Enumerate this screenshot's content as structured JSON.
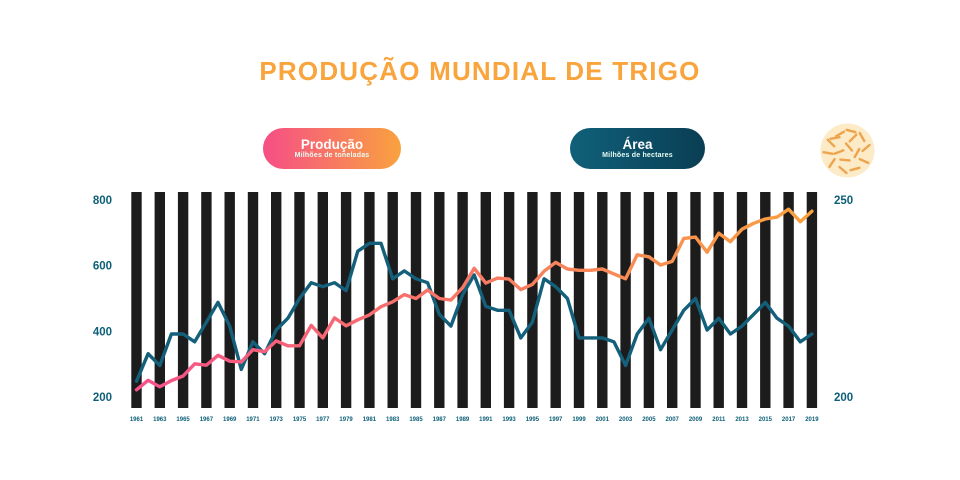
{
  "title": "PRODUÇÃO MUNDIAL DE TRIGO",
  "legend": {
    "producao": {
      "label": "Produção",
      "sublabel": "Milhões de toneladas"
    },
    "area": {
      "label": "Área",
      "sublabel": "Milhões de hectares"
    }
  },
  "icons": {
    "badge": "wheat-grains-icon"
  },
  "colors": {
    "title": "#f9a43c",
    "axis_text": "#0e6078",
    "bars": "#1c1c1c",
    "producao_line_start": "#f6508a",
    "producao_line_end": "#f9a23f",
    "area_line": "#145f7a",
    "wheat_bg": "#fdeac7",
    "wheat_grain": "#eda44e"
  },
  "chart_data": {
    "type": "line",
    "title": "PRODUÇÃO MUNDIAL DE TRIGO",
    "x_start": 1961,
    "x_step": 1,
    "x": [
      1961,
      1962,
      1963,
      1964,
      1965,
      1966,
      1967,
      1968,
      1969,
      1970,
      1971,
      1972,
      1973,
      1974,
      1975,
      1976,
      1977,
      1978,
      1979,
      1980,
      1981,
      1982,
      1983,
      1984,
      1985,
      1986,
      1987,
      1988,
      1989,
      1990,
      1991,
      1992,
      1993,
      1994,
      1995,
      1996,
      1997,
      1998,
      1999,
      2000,
      2001,
      2002,
      2003,
      2004,
      2005,
      2006,
      2007,
      2008,
      2009,
      2010,
      2011,
      2012,
      2013,
      2014,
      2015,
      2016,
      2017,
      2018,
      2019
    ],
    "x_tick_labels": [
      "1961",
      "1963",
      "1965",
      "1967",
      "1969",
      "1971",
      "1973",
      "1975",
      "1977",
      "1979",
      "1981",
      "1983",
      "1985",
      "1987",
      "1989",
      "1991",
      "1993",
      "1995",
      "1997",
      "1999",
      "2001",
      "2003",
      "2005",
      "2007",
      "2009",
      "2011",
      "2013",
      "2015",
      "2017",
      "2019"
    ],
    "series": [
      {
        "name": "Produção (Milhões de toneladas)",
        "axis": "left",
        "values": [
          222,
          251,
          231,
          250,
          264,
          301,
          297,
          327,
          309,
          307,
          344,
          338,
          371,
          356,
          356,
          418,
          380,
          441,
          417,
          435,
          450,
          475,
          490,
          512,
          500,
          526,
          500,
          495,
          533,
          592,
          547,
          562,
          559,
          527,
          543,
          583,
          610,
          590,
          586,
          586,
          590,
          575,
          560,
          633,
          627,
          602,
          613,
          683,
          687,
          641,
          699,
          673,
          711,
          729,
          742,
          748,
          772,
          734,
          766
        ]
      },
      {
        "name": "Área (Milhões de hectares)",
        "axis": "right",
        "values": [
          204,
          211,
          208,
          216,
          216,
          214,
          219,
          224,
          218,
          207,
          214,
          211,
          217,
          220,
          225,
          229,
          228,
          229,
          227,
          237,
          239,
          239,
          230,
          232,
          230,
          229,
          221,
          218,
          226,
          231,
          223,
          222,
          222,
          215,
          219,
          230,
          228,
          225,
          215,
          215,
          215,
          214,
          208,
          216,
          220,
          212,
          217,
          222,
          225,
          217,
          220,
          216,
          218,
          221,
          224,
          220,
          218,
          214,
          216
        ]
      }
    ],
    "left_axis": {
      "ticks": [
        800,
        600,
        400,
        200
      ],
      "range": [
        200,
        800
      ]
    },
    "right_axis": {
      "ticks": [
        250,
        200
      ],
      "range": [
        200,
        250
      ]
    },
    "background_bars": {
      "count": 30
    },
    "grid": false,
    "legend_position": "top"
  }
}
